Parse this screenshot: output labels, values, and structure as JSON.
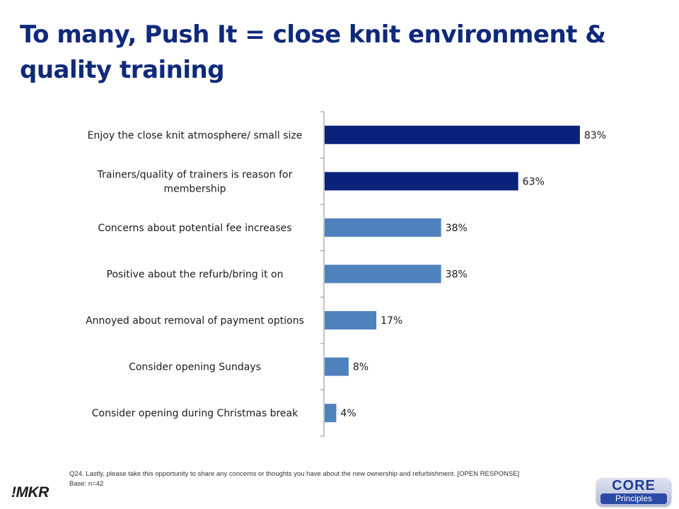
{
  "slide": {
    "title": "To many, Push It = close knit environment & quality training"
  },
  "chart_data": {
    "type": "bar",
    "orientation": "horizontal",
    "categories": [
      "Enjoy the close knit atmosphere/ small size",
      "Trainers/quality of trainers is reason for membership",
      "Concerns about potential fee increases",
      "Positive about the refurb/bring it on",
      "Annoyed about removal of payment options",
      "Consider opening Sundays",
      "Consider opening during Christmas break"
    ],
    "values": [
      83,
      63,
      38,
      38,
      17,
      8,
      4
    ],
    "value_labels": [
      "83%",
      "63%",
      "38%",
      "38%",
      "17%",
      "8%",
      "4%"
    ],
    "xlim": [
      0,
      100
    ],
    "colors": [
      "#0b227a",
      "#0b227a",
      "#4f81bd",
      "#4f81bd",
      "#4f81bd",
      "#4f81bd",
      "#4f81bd"
    ],
    "grid": false,
    "legend": "none"
  },
  "footnote": {
    "question": "Q24. Lastly, please take this opportunity to share any concerns or thoughts you have about the new ownership and refurbishment. [OPEN RESPONSE]",
    "base": "Base: n=42"
  },
  "logos": {
    "mkr": "!MKR",
    "core_line1": "CORE",
    "core_line2": "Principles"
  }
}
